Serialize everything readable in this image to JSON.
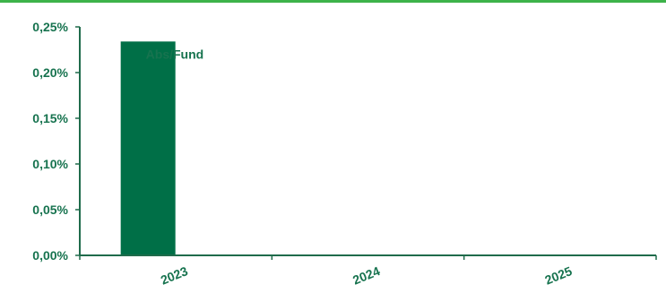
{
  "colors": {
    "accent_rule": "#3db34a",
    "bar": "#006f47",
    "axis": "#1f6b4b",
    "text": "#17734f"
  },
  "chart_data": {
    "type": "bar",
    "categories": [
      "2023",
      "2024",
      "2025"
    ],
    "series": [
      {
        "name": "Abs/Fund",
        "values": [
          0.00234,
          null,
          null
        ]
      }
    ],
    "ylim": [
      0,
      0.0025
    ],
    "yticks": [
      0,
      0.0005,
      0.001,
      0.0015,
      0.002,
      0.0025
    ],
    "ytick_labels": [
      "0,00%",
      "0,05%",
      "0,10%",
      "0,15%",
      "0,20%",
      "0,25%"
    ],
    "grid": false,
    "legend": "none"
  }
}
